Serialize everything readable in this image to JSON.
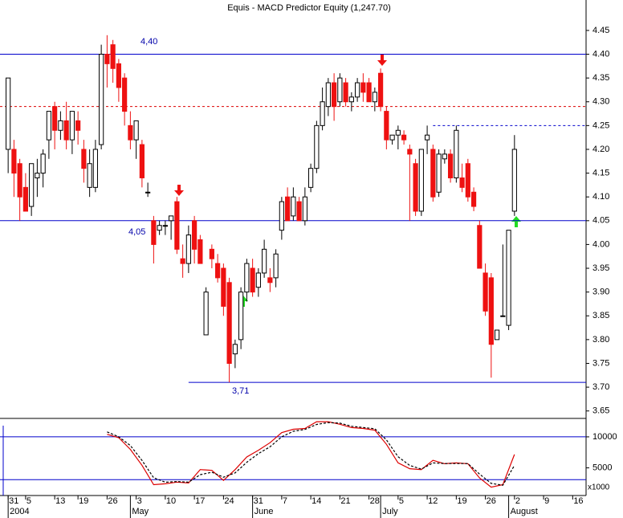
{
  "chart_data": {
    "type": "candlestick",
    "title": "Equis - MACD Predictor Equity (1,247.70)",
    "xlim": [
      -1.4,
      99.3
    ],
    "xticks": [
      {
        "value": 0,
        "label": "31"
      },
      {
        "value": 3,
        "label": "5"
      },
      {
        "value": 8,
        "label": "13"
      },
      {
        "value": 12,
        "label": "19"
      },
      {
        "value": 17,
        "label": "26"
      },
      {
        "value": 22,
        "label": "3"
      },
      {
        "value": 27,
        "label": "10"
      },
      {
        "value": 32,
        "label": "17"
      },
      {
        "value": 37,
        "label": "24"
      },
      {
        "value": 42,
        "label": "31"
      },
      {
        "value": 47,
        "label": "7"
      },
      {
        "value": 52,
        "label": "14"
      },
      {
        "value": 57,
        "label": "21"
      },
      {
        "value": 62,
        "label": "28"
      },
      {
        "value": 67,
        "label": "5"
      },
      {
        "value": 72,
        "label": "12"
      },
      {
        "value": 77,
        "label": "19"
      },
      {
        "value": 82,
        "label": "26"
      },
      {
        "value": 87,
        "label": "2"
      },
      {
        "value": 92,
        "label": "9"
      },
      {
        "value": 97,
        "label": "16"
      }
    ],
    "months": [
      {
        "value": 0,
        "label": "2004"
      },
      {
        "value": 21,
        "label": "May"
      },
      {
        "value": 42,
        "label": "June"
      },
      {
        "value": 64,
        "label": "July"
      },
      {
        "value": 86,
        "label": "August"
      }
    ],
    "ylim": [
      3.636,
      4.514
    ],
    "yticks": [
      3.65,
      {
        "value": 3.7,
        "label": "3.70"
      },
      3.75,
      {
        "value": 3.8,
        "label": "3.80"
      },
      3.85,
      {
        "value": 3.9,
        "label": "3.90"
      },
      3.95,
      {
        "value": 4.0,
        "label": "4.00"
      },
      4.05,
      {
        "value": 4.1,
        "label": "4.10"
      },
      4.15,
      {
        "value": 4.2,
        "label": "4.20"
      },
      4.25,
      {
        "value": 4.3,
        "label": "4.30"
      },
      4.35,
      {
        "value": 4.4,
        "label": "4.40"
      },
      4.45
    ],
    "up_color": "#ffffff",
    "down_color": "#ee1111",
    "candles": [
      [
        4.2,
        4.35,
        4.15,
        4.35
      ],
      [
        4.2,
        4.22,
        4.1,
        4.15
      ],
      [
        4.17,
        4.18,
        4.05,
        4.1
      ],
      [
        4.12,
        4.15,
        4.07,
        4.07
      ],
      [
        4.08,
        4.17,
        4.06,
        4.17
      ],
      [
        4.14,
        4.18,
        4.1,
        4.15
      ],
      [
        4.15,
        4.2,
        4.12,
        4.19
      ],
      [
        4.22,
        4.28,
        4.18,
        4.28
      ],
      [
        4.29,
        4.3,
        4.2,
        4.24
      ],
      [
        4.24,
        4.28,
        4.22,
        4.26
      ],
      [
        4.26,
        4.3,
        4.2,
        4.22
      ],
      [
        4.22,
        4.28,
        4.19,
        4.28
      ],
      [
        4.26,
        4.28,
        4.21,
        4.24
      ],
      [
        4.2,
        4.22,
        4.13,
        4.16
      ],
      [
        4.12,
        4.2,
        4.1,
        4.17
      ],
      [
        4.12,
        4.22,
        4.11,
        4.2
      ],
      [
        4.21,
        4.42,
        4.2,
        4.4
      ],
      [
        4.4,
        4.44,
        4.33,
        4.38
      ],
      [
        4.42,
        4.43,
        4.34,
        4.37
      ],
      [
        4.38,
        4.39,
        4.3,
        4.33
      ],
      [
        4.35,
        4.36,
        4.25,
        4.28
      ],
      [
        4.25,
        4.28,
        4.2,
        4.22
      ],
      [
        4.22,
        4.26,
        4.18,
        4.26
      ],
      [
        4.21,
        4.22,
        4.12,
        4.14
      ],
      [
        4.11,
        4.13,
        4.1,
        4.11
      ],
      [
        4.05,
        4.06,
        3.96,
        4.0
      ],
      [
        4.03,
        4.05,
        4.02,
        4.04
      ],
      [
        4.04,
        4.05,
        4.02,
        4.04
      ],
      [
        4.05,
        4.06,
        4.01,
        4.06
      ],
      [
        4.09,
        4.1,
        3.98,
        3.99
      ],
      [
        3.97,
        4.0,
        3.93,
        3.96
      ],
      [
        3.96,
        4.04,
        3.94,
        4.02
      ],
      [
        4.05,
        4.06,
        3.96,
        3.99
      ],
      [
        4.01,
        4.02,
        3.96,
        3.96
      ],
      [
        3.81,
        3.91,
        3.81,
        3.9
      ],
      [
        3.99,
        4.0,
        3.95,
        3.97
      ],
      [
        3.96,
        3.98,
        3.92,
        3.93
      ],
      [
        3.95,
        3.96,
        3.85,
        3.87
      ],
      [
        3.92,
        3.93,
        3.71,
        3.75
      ],
      [
        3.77,
        3.8,
        3.74,
        3.79
      ],
      [
        3.8,
        3.91,
        3.78,
        3.9
      ],
      [
        3.9,
        3.97,
        3.88,
        3.96
      ],
      [
        3.95,
        3.97,
        3.89,
        3.9
      ],
      [
        3.91,
        3.95,
        3.89,
        3.94
      ],
      [
        3.94,
        4.01,
        3.93,
        3.99
      ],
      [
        3.93,
        3.95,
        3.9,
        3.92
      ],
      [
        3.93,
        3.99,
        3.91,
        3.98
      ],
      [
        4.03,
        4.1,
        4.01,
        4.09
      ],
      [
        4.1,
        4.12,
        4.05,
        4.05
      ],
      [
        4.06,
        4.12,
        4.05,
        4.1
      ],
      [
        4.09,
        4.1,
        4.05,
        4.05
      ],
      [
        4.05,
        4.12,
        4.04,
        4.1
      ],
      [
        4.12,
        4.17,
        4.11,
        4.16
      ],
      [
        4.16,
        4.26,
        4.15,
        4.25
      ],
      [
        4.25,
        4.33,
        4.24,
        4.3
      ],
      [
        4.29,
        4.35,
        4.27,
        4.34
      ],
      [
        4.34,
        4.36,
        4.26,
        4.29
      ],
      [
        4.3,
        4.36,
        4.29,
        4.35
      ],
      [
        4.34,
        4.35,
        4.29,
        4.3
      ],
      [
        4.3,
        4.32,
        4.28,
        4.31
      ],
      [
        4.31,
        4.35,
        4.3,
        4.34
      ],
      [
        4.34,
        4.36,
        4.3,
        4.32
      ],
      [
        4.34,
        4.35,
        4.3,
        4.3
      ],
      [
        4.3,
        4.33,
        4.28,
        4.32
      ],
      [
        4.36,
        4.37,
        4.28,
        4.29
      ],
      [
        4.28,
        4.29,
        4.2,
        4.22
      ],
      [
        4.22,
        4.23,
        4.21,
        4.23
      ],
      [
        4.23,
        4.25,
        4.2,
        4.24
      ],
      [
        4.23,
        4.24,
        4.21,
        4.22
      ],
      [
        4.2,
        4.21,
        4.05,
        4.19
      ],
      [
        4.17,
        4.18,
        4.06,
        4.07
      ],
      [
        4.07,
        4.2,
        4.06,
        4.2
      ],
      [
        4.22,
        4.25,
        4.19,
        4.23
      ],
      [
        4.2,
        4.21,
        4.09,
        4.1
      ],
      [
        4.11,
        4.2,
        4.1,
        4.19
      ],
      [
        4.18,
        4.2,
        4.17,
        4.19
      ],
      [
        4.19,
        4.2,
        4.13,
        4.14
      ],
      [
        4.14,
        4.25,
        4.13,
        4.24
      ],
      [
        4.14,
        4.17,
        4.11,
        4.12
      ],
      [
        4.17,
        4.18,
        4.09,
        4.1
      ],
      [
        4.11,
        4.12,
        4.07,
        4.08
      ],
      [
        4.04,
        4.05,
        3.95,
        3.95
      ],
      [
        3.94,
        3.96,
        3.85,
        3.86
      ],
      [
        3.93,
        3.94,
        3.72,
        3.79
      ],
      [
        3.8,
        3.82,
        3.8,
        3.82
      ],
      [
        3.85,
        4.0,
        3.85,
        3.85
      ],
      [
        3.83,
        4.03,
        3.82,
        4.03
      ],
      [
        4.07,
        4.23,
        4.06,
        4.2
      ]
    ],
    "levels": [
      {
        "value": 4.4,
        "label": "4,40",
        "color": "#0000cc"
      },
      {
        "value": 4.29,
        "color": "#dd0000",
        "dashed": true
      },
      {
        "value": 4.25,
        "color": "#0000cc",
        "dashed": true,
        "start": 73
      },
      {
        "value": 4.05,
        "label": "4,05",
        "color": "#0000cc"
      },
      {
        "value": 3.71,
        "label": "3,71",
        "color": "#0000cc",
        "start": 31
      }
    ],
    "lower": {
      "type": "line",
      "ylim": [
        676,
        12838
      ],
      "yticks": [
        5000,
        10000
      ],
      "unit_label": "x1000",
      "levels": [
        10000,
        3100
      ],
      "x": [
        17,
        19,
        21,
        23,
        25,
        27,
        29,
        31,
        33,
        35,
        37,
        39,
        41,
        43,
        45,
        47,
        49,
        51,
        53,
        55,
        57,
        59,
        61,
        63,
        65,
        67,
        69,
        71,
        73,
        75,
        77,
        79,
        81,
        83,
        85,
        87
      ],
      "series": [
        {
          "color": "#dd0000",
          "dashed": false,
          "values": [
            10405,
            9865,
            7973,
            5405,
            2297,
            2432,
            2703,
            2568,
            4730,
            4595,
            2973,
            4730,
            6757,
            7838,
            9054,
            10676,
            11216,
            11351,
            12432,
            12432,
            12027,
            11486,
            11351,
            11081,
            8784,
            5811,
            4865,
            4730,
            6216,
            5676,
            5811,
            5676,
            3378,
            1892,
            2297,
            7162
          ]
        },
        {
          "color": "#000000",
          "dashed": true,
          "values": [
            10800,
            10000,
            8600,
            6200,
            3400,
            2700,
            2800,
            2700,
            3900,
            4300,
            3500,
            4200,
            5900,
            7300,
            8400,
            10000,
            10900,
            11200,
            12000,
            12300,
            12200,
            11700,
            11500,
            11300,
            9500,
            6800,
            5400,
            4800,
            5800,
            5700,
            5700,
            5700,
            4000,
            2500,
            2200,
            5400
          ]
        }
      ]
    }
  }
}
